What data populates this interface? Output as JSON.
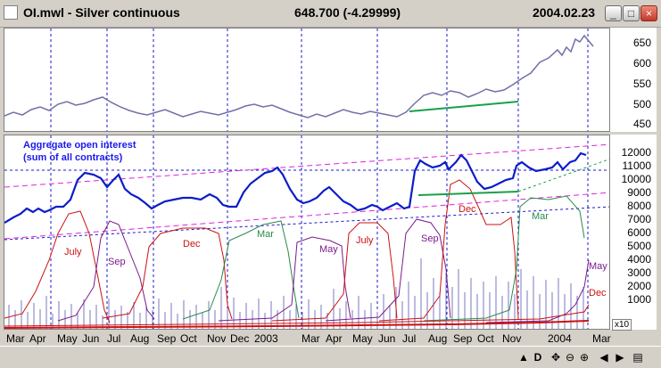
{
  "window": {
    "title": "OI.mwl - Silver continuous",
    "price": "648.700 (-4.29999)",
    "date": "2004.02.23",
    "minimize_glyph": "_",
    "maximize_glyph": "□",
    "close_glyph": "×",
    "app_icon": "chart-icon"
  },
  "price_axis": [
    "650",
    "600",
    "550",
    "500",
    "450"
  ],
  "oi_axis": [
    "12000",
    "11000",
    "10000",
    "9000",
    "8000",
    "7000",
    "6000",
    "5000",
    "4000",
    "3000",
    "2000",
    "1000"
  ],
  "oi_axis_multiplier": "x10",
  "oi_label_line1": "Aggregate open interest",
  "oi_label_line2": "(sum of all contracts)",
  "contract_labels": {
    "july1": "July",
    "sep1": "Sep",
    "dec1": "Dec",
    "mar1": "Mar",
    "may1": "May",
    "july2": "July",
    "sep2": "Sep",
    "dec2": "Dec",
    "mar2": "Mar",
    "may_right": "May",
    "dec_right": "Dec"
  },
  "x_axis_labels": [
    "Mar",
    "Apr",
    "May",
    "Jun",
    "Jul",
    "Aug",
    "Sep",
    "Oct",
    "Nov",
    "Dec",
    "2003",
    "Mar",
    "Apr",
    "May",
    "Jun",
    "Jul",
    "Aug",
    "Sep",
    "Oct",
    "Nov",
    "2004",
    "Mar"
  ],
  "colors": {
    "price_line": "#7070a8",
    "oi_line": "#0a1ec8",
    "trend_green": "#1aa04a",
    "channel_magenta": "#dd22dd",
    "grid_blue": "#1a1acc",
    "july": "#cc1111",
    "sep": "#7a1a8a",
    "dec": "#cc1111",
    "mar": "#2a8a4a",
    "may": "#7a1a8a",
    "volume": "#7878c0"
  },
  "statusbar": {
    "d_label": "D",
    "buttons": [
      "up-arrow-icon",
      "move-icon",
      "zoom-out-icon",
      "zoom-in-icon",
      "scroll-left-icon",
      "scroll-right-icon",
      "panel-icon"
    ]
  }
}
